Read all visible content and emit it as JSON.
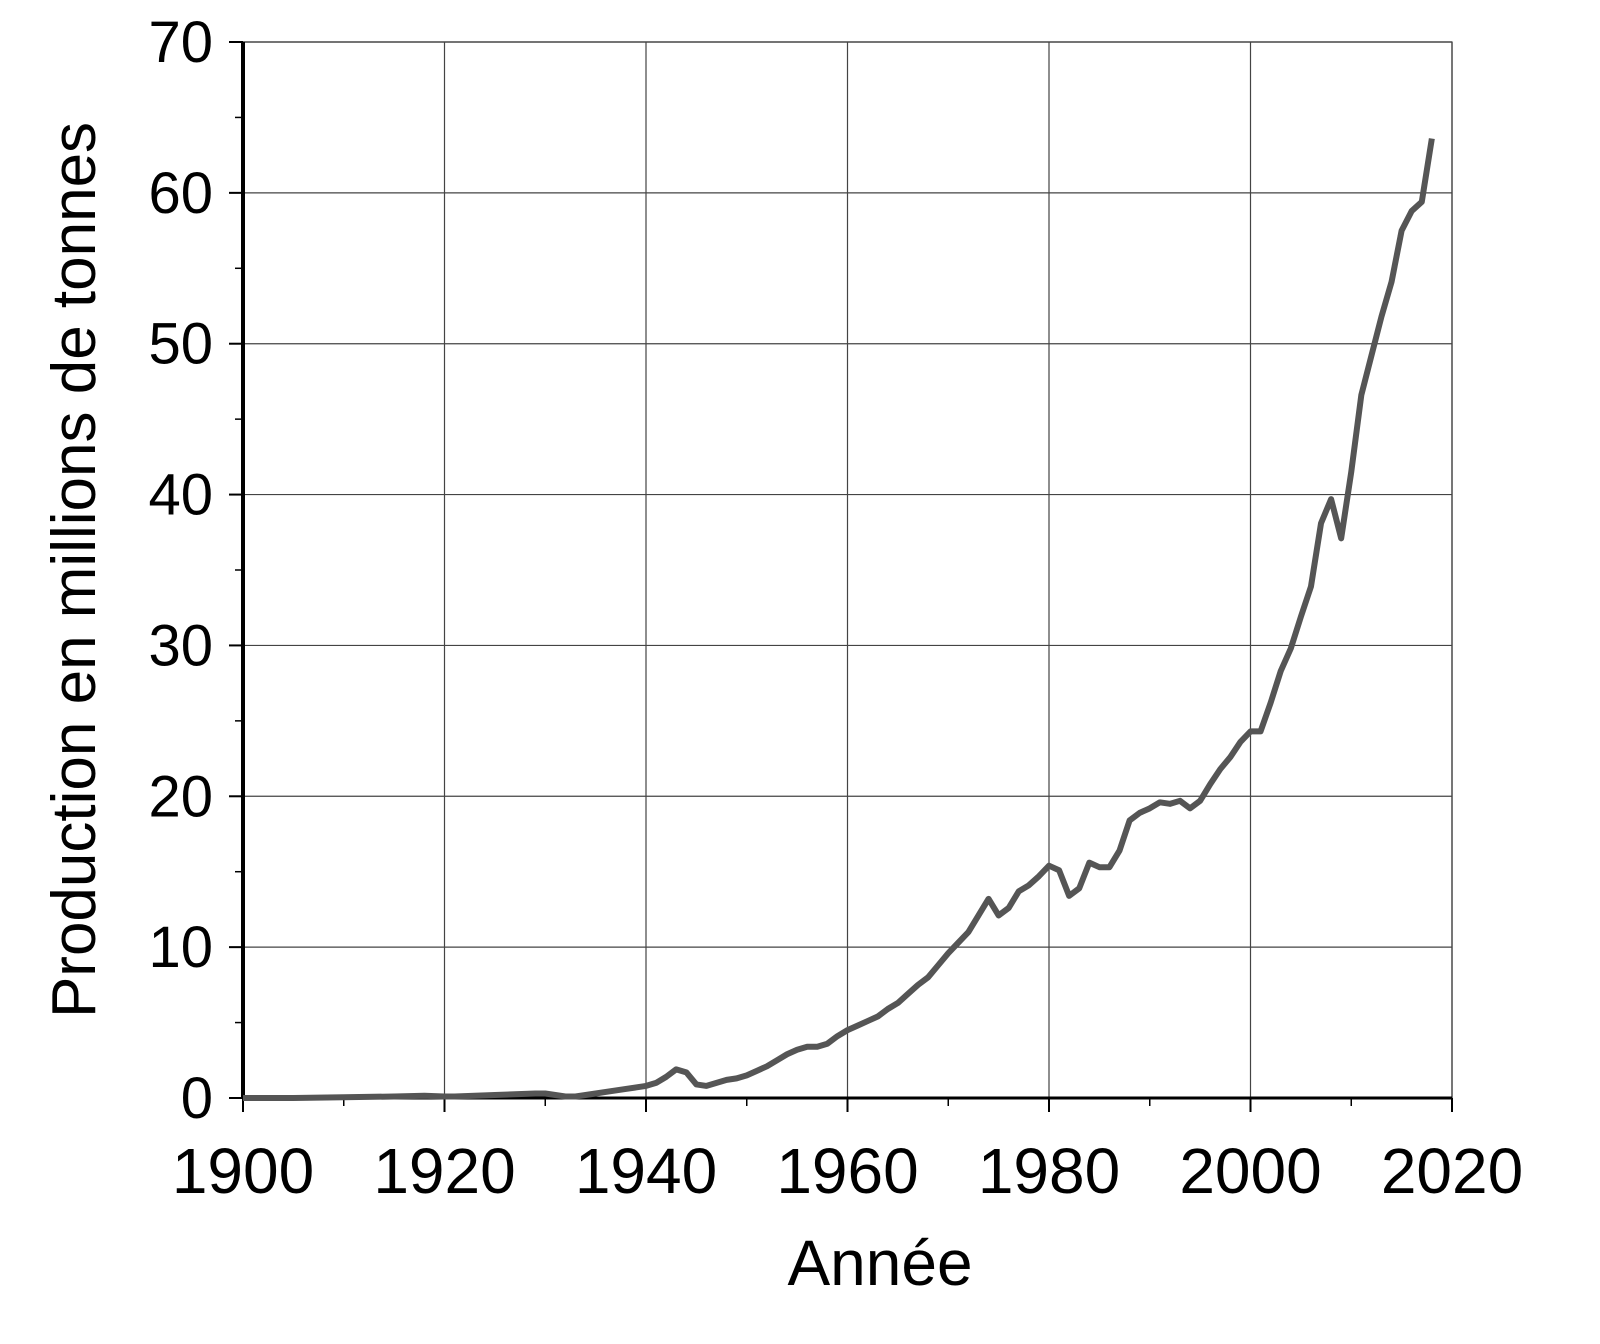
{
  "chart_data": {
    "type": "line",
    "xlabel": "Année",
    "ylabel": "Production en millions de tonnes",
    "xlim": [
      1900,
      2020
    ],
    "ylim": [
      0,
      70
    ],
    "xticks": [
      1900,
      1920,
      1940,
      1960,
      1980,
      2000,
      2020
    ],
    "yticks": [
      0,
      10,
      20,
      30,
      40,
      50,
      60,
      70
    ],
    "xticks_minor": [
      1910,
      1930,
      1950,
      1970,
      1990,
      2010
    ],
    "yticks_minor": [
      5,
      15,
      25,
      35,
      45,
      55,
      65
    ],
    "grid": true,
    "x": [
      1900,
      1905,
      1910,
      1915,
      1918,
      1920,
      1921,
      1925,
      1929,
      1930,
      1931,
      1932,
      1933,
      1934,
      1935,
      1936,
      1937,
      1938,
      1939,
      1940,
      1941,
      1942,
      1943,
      1944,
      1945,
      1946,
      1947,
      1948,
      1949,
      1950,
      1951,
      1952,
      1953,
      1954,
      1955,
      1956,
      1957,
      1958,
      1959,
      1960,
      1961,
      1962,
      1963,
      1964,
      1965,
      1966,
      1967,
      1968,
      1969,
      1970,
      1971,
      1972,
      1973,
      1974,
      1975,
      1976,
      1977,
      1978,
      1979,
      1980,
      1981,
      1982,
      1983,
      1984,
      1985,
      1986,
      1987,
      1988,
      1989,
      1990,
      1991,
      1992,
      1993,
      1994,
      1995,
      1996,
      1997,
      1998,
      1999,
      2000,
      2001,
      2002,
      2003,
      2004,
      2005,
      2006,
      2007,
      2008,
      2009,
      2010,
      2011,
      2012,
      2013,
      2014,
      2015,
      2016,
      2017,
      2018
    ],
    "series": [
      {
        "color": "#555555",
        "values": [
          0,
          0,
          0.05,
          0.1,
          0.15,
          0.1,
          0.1,
          0.2,
          0.3,
          0.3,
          0.2,
          0.1,
          0.1,
          0.2,
          0.3,
          0.4,
          0.5,
          0.6,
          0.7,
          0.8,
          1.0,
          1.4,
          1.9,
          1.7,
          0.9,
          0.8,
          1.0,
          1.2,
          1.3,
          1.5,
          1.8,
          2.1,
          2.5,
          2.9,
          3.2,
          3.4,
          3.4,
          3.6,
          4.1,
          4.5,
          4.8,
          5.1,
          5.4,
          5.9,
          6.3,
          6.9,
          7.5,
          8.0,
          8.8,
          9.6,
          10.3,
          11.0,
          12.1,
          13.2,
          12.1,
          12.6,
          13.7,
          14.1,
          14.7,
          15.4,
          15.1,
          13.4,
          13.9,
          15.6,
          15.3,
          15.3,
          16.4,
          18.4,
          18.9,
          19.2,
          19.6,
          19.5,
          19.7,
          19.2,
          19.7,
          20.8,
          21.8,
          22.6,
          23.6,
          24.3,
          24.3,
          26.2,
          28.3,
          29.8,
          31.9,
          33.9,
          38.1,
          39.7,
          37.1,
          41.5,
          46.6,
          49.2,
          51.8,
          54.1,
          57.5,
          58.8,
          59.4,
          63.6
        ]
      }
    ]
  }
}
